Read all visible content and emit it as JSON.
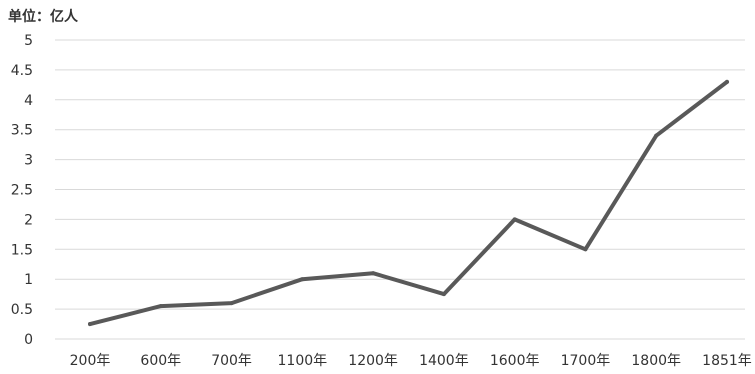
{
  "unit_label": "单位：亿人",
  "chart_data": {
    "type": "line",
    "categories": [
      "200年",
      "600年",
      "700年",
      "1100年",
      "1200年",
      "1400年",
      "1600年",
      "1700年",
      "1800年",
      "1851年"
    ],
    "series": [
      {
        "values": [
          0.25,
          0.55,
          0.6,
          1.0,
          1.1,
          0.75,
          2.0,
          1.5,
          3.4,
          4.3
        ]
      }
    ],
    "title": "",
    "xlabel": "",
    "ylabel": "单位：亿人",
    "ylim": [
      0,
      5
    ],
    "yticks": [
      "0",
      "0.5",
      "1",
      "1.5",
      "2",
      "2.5",
      "3",
      "3.5",
      "4",
      "4.5",
      "5"
    ],
    "grid": true,
    "line_color": "#595959",
    "grid_color": "#d9d9d9"
  }
}
